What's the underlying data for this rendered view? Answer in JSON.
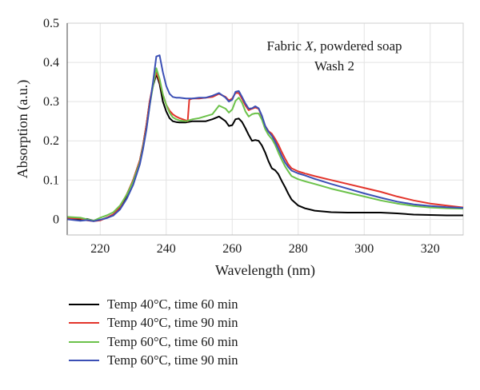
{
  "chart_data": {
    "type": "line",
    "xlabel": "Wavelength (nm)",
    "ylabel": "Absorption (a.u.)",
    "xlim": [
      210,
      330
    ],
    "ylim": [
      -0.04,
      0.5
    ],
    "xticks": [
      220,
      240,
      260,
      280,
      300,
      320
    ],
    "yticks": [
      0,
      0.1,
      0.2,
      0.3,
      0.4,
      0.5
    ],
    "ytick_labels": [
      "0",
      "0.1",
      "0.2",
      "0.3",
      "0.4",
      "0.5"
    ],
    "grid": true,
    "legend_position": "below",
    "annotation": {
      "line1_prefix": "Fabric ",
      "line1_italic": "X",
      "line1_suffix": ", powdered soap",
      "line2": "Wash 2"
    },
    "series": [
      {
        "name": "Temp 40°C, time 60 min",
        "color": "#000000",
        "x": [
          210,
          214,
          216,
          218,
          220,
          222,
          224,
          226,
          228,
          230,
          232,
          233,
          234,
          235,
          236,
          237,
          238,
          239,
          240,
          241,
          242,
          243,
          244,
          246,
          248,
          250,
          252,
          254,
          256,
          258,
          259,
          260,
          261,
          262,
          263,
          264,
          265,
          266,
          267,
          268,
          269,
          270,
          271,
          272,
          273,
          274,
          275,
          276,
          277,
          278,
          280,
          282,
          285,
          290,
          295,
          300,
          305,
          310,
          315,
          320,
          325,
          330
        ],
        "y": [
          0.002,
          -0.002,
          0.001,
          -0.004,
          -0.002,
          0.004,
          0.01,
          0.03,
          0.06,
          0.1,
          0.15,
          0.19,
          0.24,
          0.3,
          0.34,
          0.37,
          0.345,
          0.3,
          0.275,
          0.258,
          0.25,
          0.248,
          0.247,
          0.247,
          0.25,
          0.25,
          0.25,
          0.255,
          0.262,
          0.25,
          0.238,
          0.24,
          0.255,
          0.257,
          0.248,
          0.232,
          0.215,
          0.2,
          0.202,
          0.2,
          0.188,
          0.17,
          0.148,
          0.13,
          0.125,
          0.115,
          0.098,
          0.082,
          0.065,
          0.05,
          0.035,
          0.028,
          0.022,
          0.018,
          0.017,
          0.017,
          0.017,
          0.015,
          0.012,
          0.011,
          0.01,
          0.01
        ]
      },
      {
        "name": "Temp 40°C, time 90 min",
        "color": "#e3342b",
        "x": [
          210,
          214,
          216,
          218,
          220,
          222,
          224,
          226,
          228,
          230,
          232,
          233,
          234,
          235,
          236,
          237,
          238,
          239,
          240,
          241,
          242,
          243,
          244,
          246,
          246.5,
          247,
          248,
          250,
          252,
          254,
          256,
          258,
          259,
          260,
          261,
          262,
          263,
          264,
          265,
          266,
          267,
          268,
          269,
          270,
          271,
          272,
          273,
          274,
          275,
          276,
          277,
          278,
          280,
          282,
          285,
          290,
          295,
          300,
          305,
          310,
          315,
          320,
          325,
          330
        ],
        "y": [
          0.003,
          0.002,
          -0.003,
          -0.005,
          -0.003,
          0.004,
          0.013,
          0.032,
          0.063,
          0.1,
          0.15,
          0.19,
          0.24,
          0.3,
          0.345,
          0.375,
          0.352,
          0.318,
          0.292,
          0.277,
          0.268,
          0.262,
          0.258,
          0.252,
          0.25,
          0.305,
          0.308,
          0.308,
          0.31,
          0.312,
          0.32,
          0.312,
          0.303,
          0.308,
          0.322,
          0.322,
          0.307,
          0.29,
          0.278,
          0.282,
          0.285,
          0.282,
          0.262,
          0.238,
          0.225,
          0.218,
          0.205,
          0.19,
          0.172,
          0.155,
          0.14,
          0.13,
          0.122,
          0.117,
          0.11,
          0.1,
          0.09,
          0.08,
          0.07,
          0.058,
          0.048,
          0.04,
          0.035,
          0.03
        ]
      },
      {
        "name": "Temp 60°C, time 60 min",
        "color": "#6cc24a",
        "x": [
          210,
          214,
          216,
          218,
          220,
          222,
          224,
          226,
          228,
          230,
          232,
          233,
          234,
          235,
          236,
          237,
          238,
          239,
          240,
          241,
          242,
          243,
          244,
          246,
          248,
          250,
          252,
          254,
          256,
          258,
          259,
          260,
          261,
          262,
          263,
          264,
          265,
          266,
          267,
          268,
          269,
          270,
          271,
          272,
          273,
          274,
          275,
          276,
          277,
          278,
          280,
          282,
          285,
          290,
          295,
          300,
          305,
          310,
          315,
          320,
          325,
          330
        ],
        "y": [
          0.006,
          0.004,
          0.0,
          -0.004,
          0.004,
          0.01,
          0.018,
          0.035,
          0.062,
          0.097,
          0.145,
          0.185,
          0.23,
          0.29,
          0.34,
          0.385,
          0.358,
          0.318,
          0.292,
          0.272,
          0.26,
          0.255,
          0.252,
          0.25,
          0.255,
          0.258,
          0.263,
          0.268,
          0.29,
          0.282,
          0.272,
          0.28,
          0.302,
          0.31,
          0.297,
          0.275,
          0.262,
          0.268,
          0.27,
          0.27,
          0.254,
          0.23,
          0.215,
          0.205,
          0.19,
          0.17,
          0.152,
          0.135,
          0.122,
          0.11,
          0.102,
          0.097,
          0.09,
          0.078,
          0.068,
          0.058,
          0.048,
          0.04,
          0.034,
          0.03,
          0.028,
          0.027
        ]
      },
      {
        "name": "Temp 60°C, time 90 min",
        "color": "#3b4fb5",
        "x": [
          210,
          214,
          216,
          218,
          220,
          222,
          224,
          226,
          228,
          230,
          232,
          233,
          234,
          235,
          236,
          237,
          238,
          239,
          240,
          241,
          242,
          243,
          244,
          246,
          248,
          250,
          252,
          254,
          256,
          258,
          259,
          260,
          261,
          262,
          263,
          264,
          265,
          266,
          267,
          268,
          269,
          270,
          271,
          272,
          273,
          274,
          275,
          276,
          277,
          278,
          280,
          282,
          285,
          290,
          295,
          300,
          305,
          310,
          315,
          320,
          325,
          330
        ],
        "y": [
          0.0,
          -0.004,
          -0.002,
          -0.005,
          -0.001,
          0.003,
          0.01,
          0.025,
          0.052,
          0.088,
          0.14,
          0.18,
          0.228,
          0.29,
          0.35,
          0.415,
          0.418,
          0.375,
          0.34,
          0.32,
          0.312,
          0.31,
          0.31,
          0.308,
          0.308,
          0.31,
          0.31,
          0.315,
          0.322,
          0.31,
          0.3,
          0.305,
          0.325,
          0.327,
          0.312,
          0.295,
          0.282,
          0.283,
          0.288,
          0.283,
          0.264,
          0.238,
          0.223,
          0.213,
          0.198,
          0.18,
          0.162,
          0.145,
          0.133,
          0.124,
          0.117,
          0.112,
          0.103,
          0.09,
          0.078,
          0.066,
          0.055,
          0.045,
          0.038,
          0.034,
          0.031,
          0.029
        ]
      }
    ]
  }
}
